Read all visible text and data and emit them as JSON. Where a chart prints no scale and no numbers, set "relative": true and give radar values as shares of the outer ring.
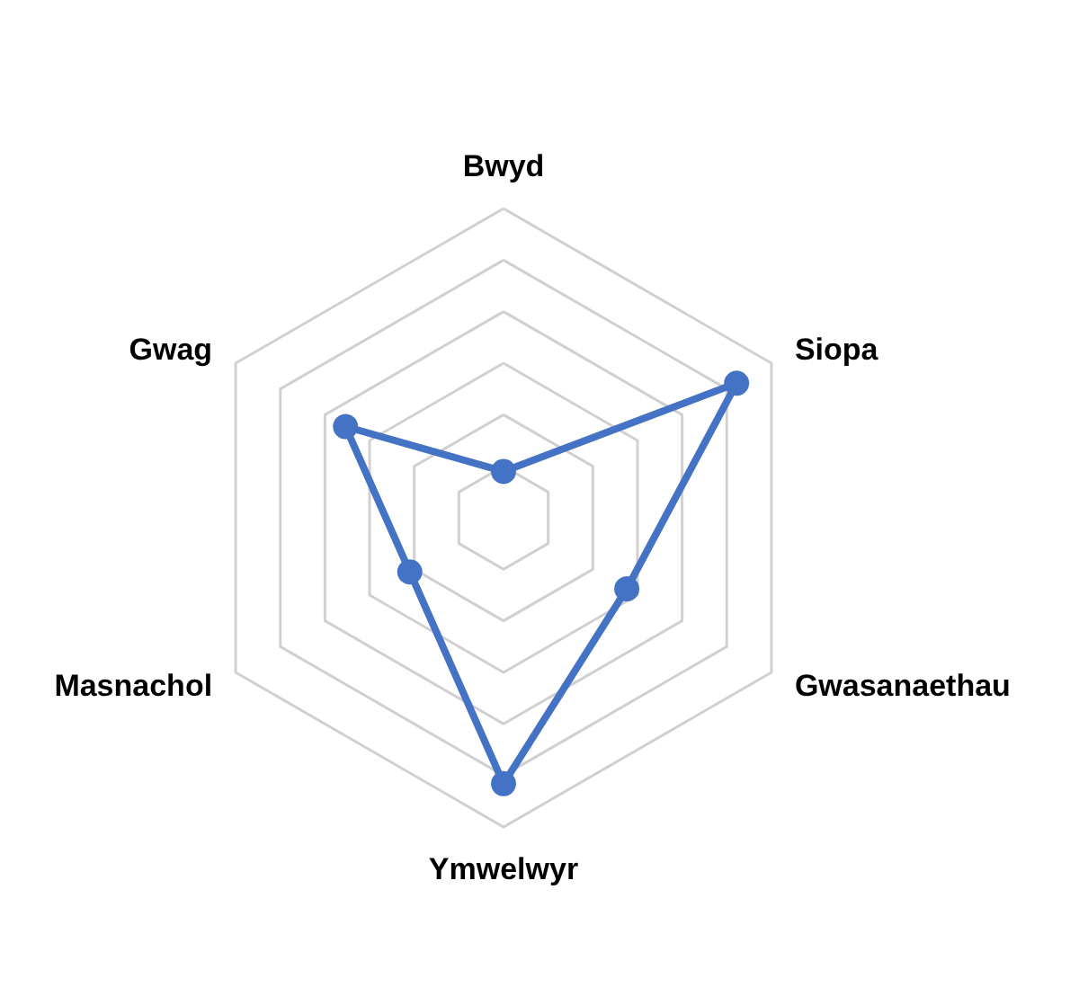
{
  "chart_data": {
    "type": "radar",
    "relative": true,
    "categories": [
      "Bwyd",
      "Siopa",
      "Gwasanaethau",
      "Ymwelwyr",
      "Masnachol",
      "Gwag"
    ],
    "series": [
      {
        "color": "#4472c4",
        "values": [
          0.15,
          0.87,
          0.46,
          0.86,
          0.35,
          0.59
        ]
      }
    ],
    "marker": "circle",
    "line_style": "solid",
    "grid": true
  }
}
